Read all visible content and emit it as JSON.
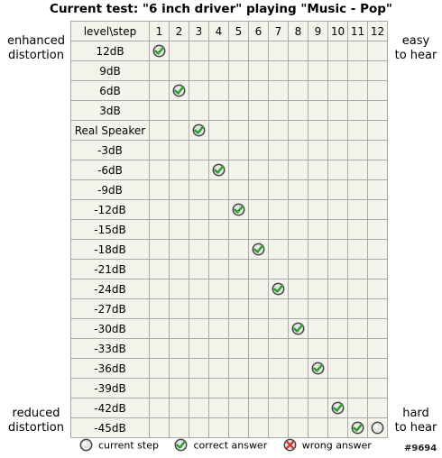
{
  "title": "Current test: \"6 inch driver\" playing \"Music - Pop\"",
  "side_labels": {
    "left_top": [
      "enhanced",
      "distortion"
    ],
    "right_top": [
      "easy",
      "to hear"
    ],
    "left_bottom": [
      "reduced",
      "distortion"
    ],
    "right_bottom": [
      "hard",
      "to hear"
    ]
  },
  "grid": {
    "corner": "level\\step",
    "steps": [
      "1",
      "2",
      "3",
      "4",
      "5",
      "6",
      "7",
      "8",
      "9",
      "10",
      "11",
      "12"
    ],
    "levels": [
      "12dB",
      "9dB",
      "6dB",
      "3dB",
      "Real Speaker",
      "-3dB",
      "-6dB",
      "-9dB",
      "-12dB",
      "-15dB",
      "-18dB",
      "-21dB",
      "-24dB",
      "-27dB",
      "-30dB",
      "-33dB",
      "-36dB",
      "-39dB",
      "-42dB",
      "-45dB"
    ],
    "answers": [
      {
        "step": 1,
        "level": "12dB",
        "mark": "correct"
      },
      {
        "step": 2,
        "level": "6dB",
        "mark": "correct"
      },
      {
        "step": 3,
        "level": "Real Speaker",
        "mark": "correct"
      },
      {
        "step": 4,
        "level": "-6dB",
        "mark": "correct"
      },
      {
        "step": 5,
        "level": "-12dB",
        "mark": "correct"
      },
      {
        "step": 6,
        "level": "-18dB",
        "mark": "correct"
      },
      {
        "step": 7,
        "level": "-24dB",
        "mark": "correct"
      },
      {
        "step": 8,
        "level": "-30dB",
        "mark": "correct"
      },
      {
        "step": 9,
        "level": "-36dB",
        "mark": "correct"
      },
      {
        "step": 10,
        "level": "-42dB",
        "mark": "correct"
      },
      {
        "step": 11,
        "level": "-45dB",
        "mark": "correct"
      },
      {
        "step": 12,
        "level": "-45dB",
        "mark": "current"
      }
    ]
  },
  "legend": {
    "current": "current step",
    "correct": "correct answer",
    "wrong": "wrong answer"
  },
  "id_mark": "#9694",
  "colors": {
    "grid_bg": "#f4f4ec",
    "grid_line": "#a9a9a9",
    "check_green": "#2f9e2f",
    "wrong_red": "#d43c2c",
    "circle_fill": "#e6e6e6"
  }
}
